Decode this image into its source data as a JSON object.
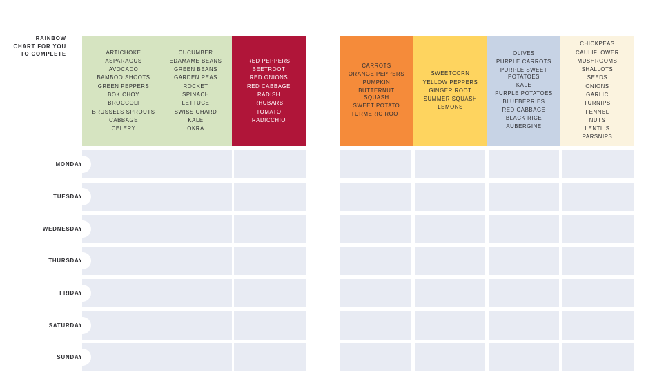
{
  "title": [
    "RAINBOW",
    "CHART FOR YOU",
    "TO COMPLETE"
  ],
  "colors": {
    "green": "#d6e4c1",
    "red": "#b01539",
    "orange": "#f58b3a",
    "yellow": "#fed45f",
    "blue": "#c7d3e5",
    "cream": "#fbf3df",
    "cell": "#e8ebf3"
  },
  "columns": {
    "green": {
      "left": [
        "ARTICHOKE",
        "ASPARAGUS",
        "AVOCADO",
        "BAMBOO SHOOTS",
        "GREEN PEPPERS",
        "BOK CHOY",
        "BROCCOLI",
        "BRUSSELS SPROUTS",
        "CABBAGE",
        "CELERY"
      ],
      "right": [
        "CUCUMBER",
        "EDAMAME BEANS",
        "GREEN BEANS",
        "GARDEN PEAS",
        "ROCKET",
        "SPINACH",
        "LETTUCE",
        "SWISS CHARD",
        "KALE",
        "OKRA"
      ]
    },
    "red": [
      "RED PEPPERS",
      "BEETROOT",
      "RED ONIONS",
      "RED CABBAGE",
      "RADISH",
      "RHUBARB",
      "TOMATO",
      "RADICCHIO"
    ],
    "orange": [
      "CARROTS",
      "ORANGE PEPPERS",
      "PUMPKIN",
      "BUTTERNUT SQUASH",
      "SWEET POTATO",
      "TURMERIC ROOT"
    ],
    "yellow": [
      "SWEETCORN",
      "YELLOW PEPPERS",
      "GINGER ROOT",
      "SUMMER SQUASH",
      "LEMONS"
    ],
    "blue": [
      "OLIVES",
      "PURPLE CARROTS",
      "PURPLE SWEET POTATOES",
      "KALE",
      "PURPLE POTATOES",
      "BLUEBERRIES",
      "RED CABBAGE",
      "BLACK RICE",
      "AUBERGINE"
    ],
    "cream": [
      "CHICKPEAS",
      "CAULIFLOWER",
      "MUSHROOMS",
      "SHALLOTS",
      "SEEDS",
      "ONIONS",
      "GARLIC",
      "TURNIPS",
      "FENNEL",
      "NUTS",
      "LENTILS",
      "PARSNIPS"
    ]
  },
  "days": [
    "MONDAY",
    "TUESDAY",
    "WEDNESDAY",
    "THURSDAY",
    "FRIDAY",
    "SATURDAY",
    "SUNDAY"
  ]
}
